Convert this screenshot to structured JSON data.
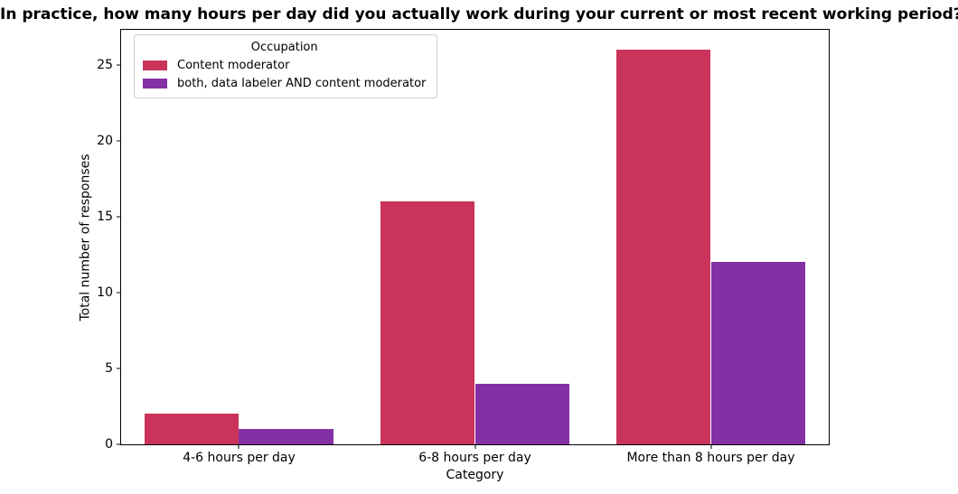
{
  "chart_data": {
    "type": "bar",
    "title": "In practice, how many hours per day did you actually work during your current or most recent working period?",
    "categories": [
      "4-6 hours per day",
      "6-8 hours per day",
      "More than 8 hours per day"
    ],
    "series": [
      {
        "name": "Content moderator",
        "color": "#ca345a",
        "values": [
          2,
          16,
          26
        ]
      },
      {
        "name": "both, data labeler AND content moderator",
        "color": "#8430a5",
        "values": [
          1,
          4,
          12
        ]
      }
    ],
    "xlabel": "Category",
    "ylabel": "Total number of responses",
    "ylim": [
      0,
      27.3
    ],
    "yticks": [
      0,
      5,
      10,
      15,
      20,
      25
    ],
    "legend_title": "Occupation",
    "legend_position": "upper left",
    "grid": false,
    "bar_group_width": 0.8
  }
}
